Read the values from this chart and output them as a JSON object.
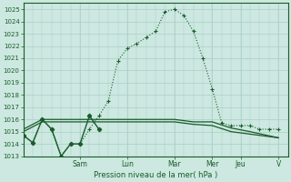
{
  "xlabel": "Pression niveau de la mer( hPa )",
  "background_color": "#cce8e0",
  "grid_color": "#aacfc8",
  "line_color": "#1a5c2a",
  "ylim": [
    1013,
    1025.5
  ],
  "yticks": [
    1013,
    1014,
    1015,
    1016,
    1017,
    1018,
    1019,
    1020,
    1021,
    1022,
    1023,
    1024,
    1025
  ],
  "xlim": [
    0,
    14.0
  ],
  "day_labels": [
    "Sam",
    "Lun",
    "Mar",
    "Mer",
    "Jeu",
    "V"
  ],
  "day_positions": [
    3.0,
    5.5,
    8.0,
    10.0,
    11.5,
    13.5
  ],
  "series1_x": [
    0.0,
    0.5,
    1.0,
    1.5,
    2.0,
    2.5,
    3.0,
    3.5,
    4.0,
    4.5,
    5.0,
    5.5,
    6.0,
    6.5,
    7.0,
    7.5,
    8.0,
    8.5,
    9.0,
    9.5,
    10.0,
    10.5,
    11.0,
    11.5,
    12.0,
    12.5,
    13.0,
    13.5
  ],
  "series1_y": [
    1014.7,
    1014.1,
    1016.0,
    1015.2,
    1013.0,
    1014.0,
    1014.0,
    1015.2,
    1016.3,
    1017.5,
    1020.8,
    1021.8,
    1022.2,
    1022.7,
    1023.2,
    1024.8,
    1025.0,
    1024.5,
    1023.2,
    1021.0,
    1018.5,
    1015.7,
    1015.5,
    1015.5,
    1015.5,
    1015.2,
    1015.2,
    1015.2
  ],
  "series2_x": [
    0.0,
    1.0,
    2.0,
    3.0,
    4.0,
    5.0,
    6.0,
    7.0,
    8.0,
    9.0,
    10.0,
    11.0,
    12.0,
    13.5
  ],
  "series2_y": [
    1015.0,
    1015.8,
    1015.8,
    1015.8,
    1015.8,
    1015.8,
    1015.8,
    1015.8,
    1015.8,
    1015.6,
    1015.5,
    1015.0,
    1014.8,
    1014.5
  ],
  "series3_x": [
    0.0,
    1.0,
    2.0,
    3.0,
    4.0,
    5.0,
    6.0,
    7.0,
    8.0,
    9.0,
    10.0,
    11.0,
    12.0,
    13.5
  ],
  "series3_y": [
    1015.2,
    1016.0,
    1016.0,
    1016.0,
    1016.0,
    1016.0,
    1016.0,
    1016.0,
    1016.0,
    1015.8,
    1015.8,
    1015.3,
    1015.0,
    1014.5
  ],
  "series4_x": [
    0.0,
    0.5,
    1.0,
    1.5,
    2.0,
    2.5,
    3.0,
    3.5,
    4.0
  ],
  "series4_y": [
    1014.7,
    1014.1,
    1016.0,
    1015.2,
    1013.0,
    1014.0,
    1014.0,
    1016.3,
    1015.2
  ]
}
